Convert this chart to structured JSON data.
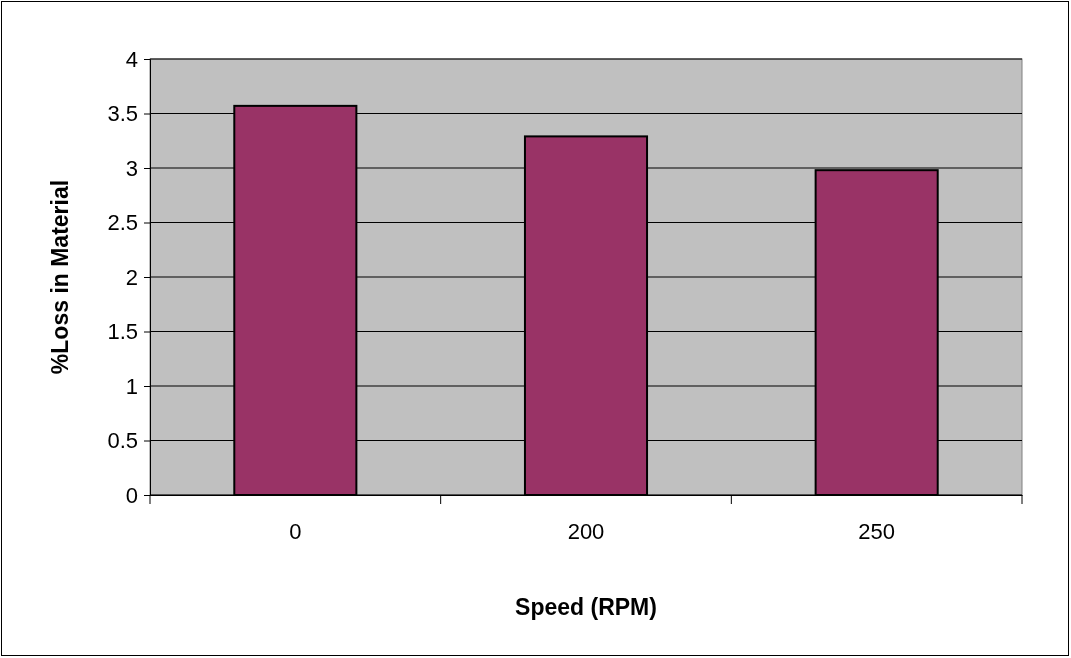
{
  "chart_data": {
    "type": "bar",
    "xlabel": "Speed (RPM)",
    "ylabel": "%Loss in Material",
    "categories": [
      "0",
      "200",
      "250"
    ],
    "values": [
      3.57,
      3.29,
      2.98
    ],
    "color": "#993366",
    "ylim": [
      0,
      4
    ],
    "yticks": [
      0,
      0.5,
      1,
      1.5,
      2,
      2.5,
      3,
      3.5,
      4
    ],
    "grid": "y"
  }
}
